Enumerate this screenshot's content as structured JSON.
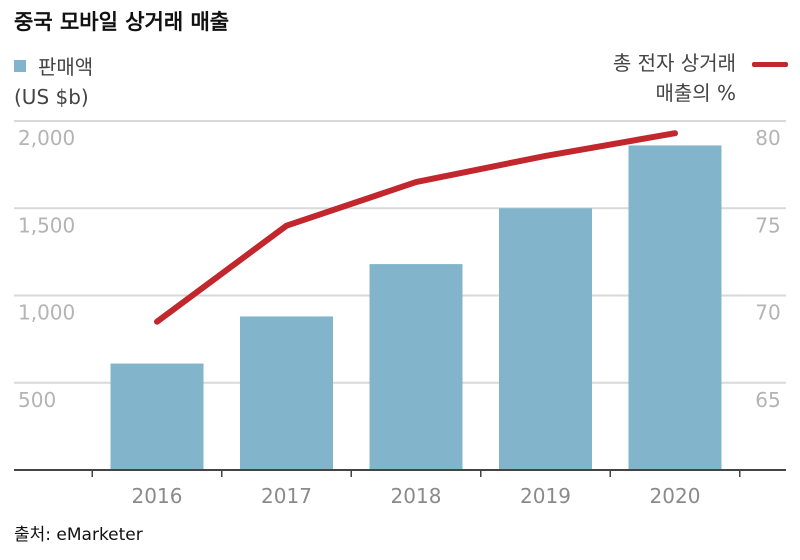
{
  "title": "중국 모바일 상거래 매출",
  "legend": {
    "bar_label": "판매액",
    "bar_unit": "(US $b)",
    "line_label": "총 전자 상거래",
    "line_unit": "매출의 %"
  },
  "source": "출처: eMarketer",
  "colors": {
    "bar": "#82b4cc",
    "line": "#c1272d",
    "grid": "#d9d9d9",
    "axis": "#444444",
    "tick_text": "#b4b4b4"
  },
  "chart_data": {
    "type": "bar",
    "title": "중국 모바일 상거래 매출",
    "categories": [
      "2016",
      "2017",
      "2018",
      "2019",
      "2020"
    ],
    "series": [
      {
        "name": "판매액 (US $b)",
        "type": "bar",
        "axis": "left",
        "values": [
          610,
          880,
          1180,
          1500,
          1860
        ]
      },
      {
        "name": "총 전자 상거래 매출의 %",
        "type": "line",
        "axis": "right",
        "values": [
          68.5,
          74,
          76.5,
          78,
          79.3
        ]
      }
    ],
    "left_axis": {
      "ticks": [
        "2,000",
        "1,500",
        "1,000",
        "500"
      ],
      "tick_values": [
        2000,
        1500,
        1000,
        500
      ],
      "range": [
        0,
        2000
      ]
    },
    "right_axis": {
      "ticks": [
        "80",
        "75",
        "70",
        "65"
      ],
      "tick_values": [
        80,
        75,
        70,
        65
      ],
      "range": [
        60,
        80
      ]
    },
    "grid": true
  }
}
